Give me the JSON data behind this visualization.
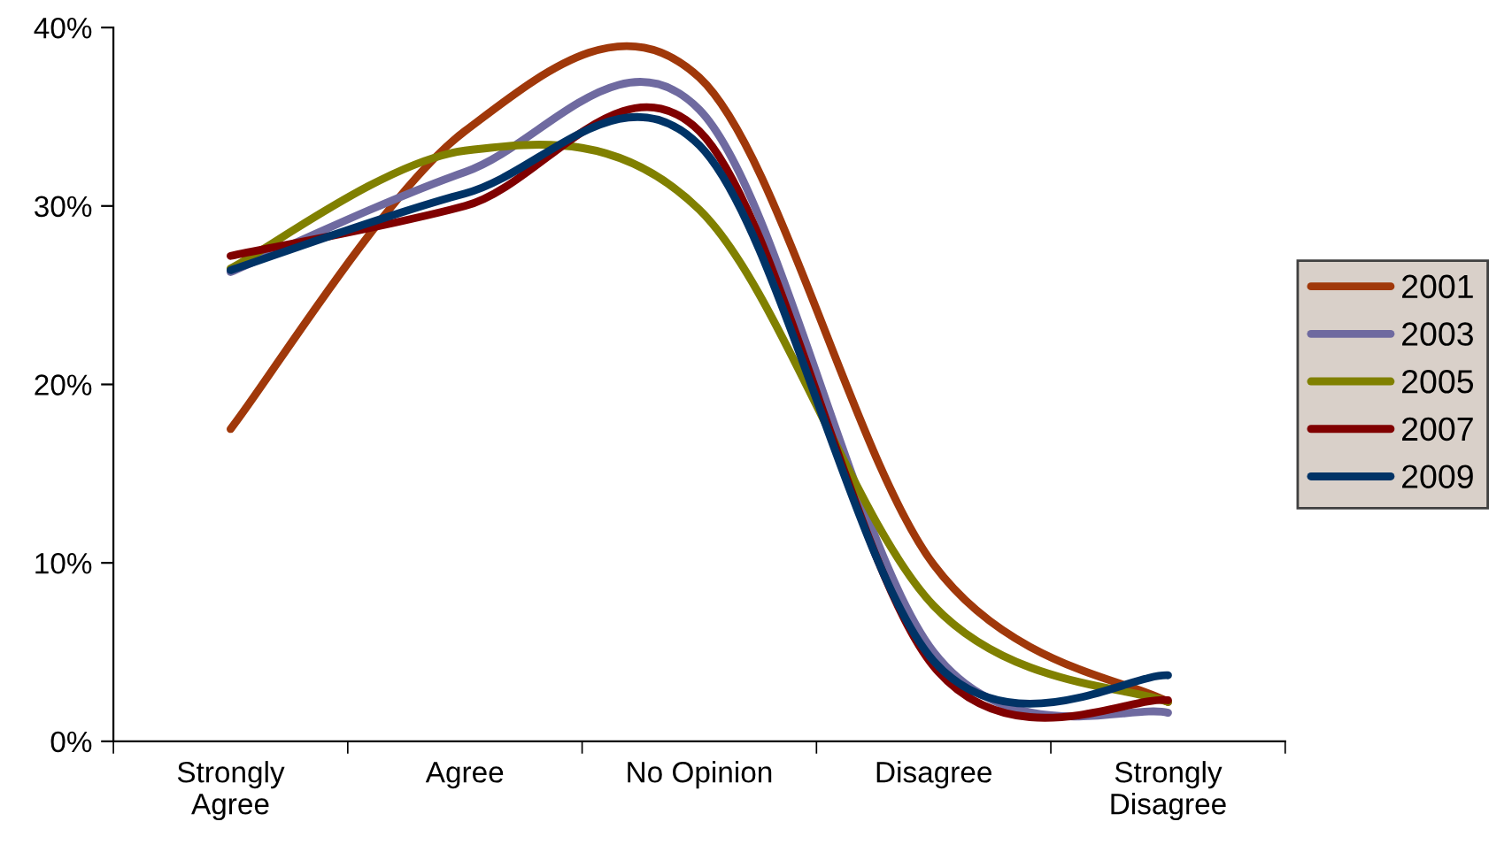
{
  "chart_data": {
    "type": "line",
    "categories": [
      "Strongly\nAgree",
      "Agree",
      "No Opinion",
      "Disagree",
      "Strongly\nDisagree"
    ],
    "series": [
      {
        "name": "2001",
        "color": "#a0380a",
        "values": [
          17.5,
          34.2,
          37.2,
          9.9,
          2.2
        ]
      },
      {
        "name": "2003",
        "color": "#6f6aa0",
        "values": [
          26.3,
          31.9,
          35.4,
          5.0,
          1.6
        ]
      },
      {
        "name": "2005",
        "color": "#808000",
        "values": [
          26.5,
          33.1,
          29.8,
          7.6,
          2.2
        ]
      },
      {
        "name": "2007",
        "color": "#800000",
        "values": [
          27.2,
          30.0,
          34.2,
          4.2,
          2.3
        ]
      },
      {
        "name": "2009",
        "color": "#003366",
        "values": [
          26.4,
          30.7,
          33.4,
          4.5,
          3.7
        ]
      }
    ],
    "ylim": [
      0,
      40
    ],
    "yticks": [
      {
        "value": 0,
        "label": "0%"
      },
      {
        "value": 10,
        "label": "10%"
      },
      {
        "value": 20,
        "label": "20%"
      },
      {
        "value": 30,
        "label": "30%"
      },
      {
        "value": 40,
        "label": "40%"
      }
    ],
    "grid": false,
    "legend": "right",
    "marker": "none",
    "line_style": "solid"
  }
}
